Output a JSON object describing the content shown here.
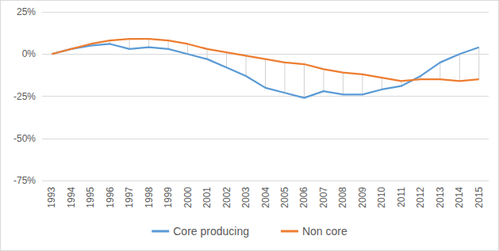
{
  "chart_data": {
    "type": "line",
    "categories": [
      "1993",
      "1994",
      "1995",
      "1996",
      "1997",
      "1998",
      "1999",
      "2000",
      "2001",
      "2002",
      "2003",
      "2004",
      "2005",
      "2006",
      "2007",
      "2008",
      "2009",
      "2010",
      "2011",
      "2012",
      "2013",
      "2014",
      "2015"
    ],
    "series": [
      {
        "name": "Core producing",
        "color": "#5b9bd5",
        "values": [
          0,
          3,
          5,
          6,
          3,
          4,
          3,
          0,
          -3,
          -8,
          -13,
          -20,
          -23,
          -26,
          -22,
          -24,
          -24,
          -21,
          -19,
          -13,
          -5,
          0,
          4
        ]
      },
      {
        "name": "Non core",
        "color": "#ed7d31",
        "values": [
          0,
          3,
          6,
          8,
          9,
          9,
          8,
          6,
          3,
          1,
          -1,
          -3,
          -5,
          -6,
          -9,
          -11,
          -12,
          -14,
          -16,
          -15,
          -15,
          -16,
          -15
        ]
      }
    ],
    "ylim": [
      -75,
      25
    ],
    "yticks": [
      {
        "value": -75,
        "label": "-75%"
      },
      {
        "value": -50,
        "label": "-50%"
      },
      {
        "value": -25,
        "label": "-25%"
      },
      {
        "value": 0,
        "label": "0%"
      },
      {
        "value": 25,
        "label": "25%"
      }
    ],
    "grid": true,
    "legend": "bottom"
  }
}
